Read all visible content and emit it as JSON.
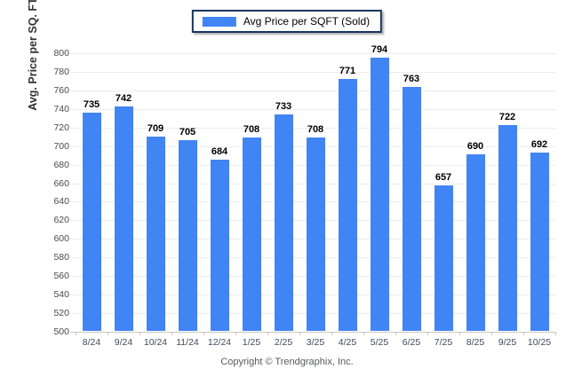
{
  "legend": {
    "label": "Avg Price per SQFT (Sold)"
  },
  "axes": {
    "y_title": "Avg. Price per SQ. FT.",
    "yticks": [
      500,
      520,
      540,
      560,
      580,
      600,
      620,
      640,
      660,
      680,
      700,
      720,
      740,
      760,
      780,
      800
    ]
  },
  "footer": {
    "copyright": "Copyright © Trendgraphix, Inc."
  },
  "colors": {
    "bar": "#4184f3",
    "legend_border": "#17375e",
    "gridline": "#ececec",
    "baseline": "#c9c9c9"
  },
  "chart_data": {
    "type": "bar",
    "title": "",
    "xlabel": "",
    "ylabel": "Avg. Price per SQ. FT.",
    "ylim": [
      500,
      800
    ],
    "ytick_step": 20,
    "grid": true,
    "legend_position": "top-center",
    "series_name": "Avg Price per SQFT (Sold)",
    "categories": [
      "8/24",
      "9/24",
      "10/24",
      "11/24",
      "12/24",
      "1/25",
      "2/25",
      "3/25",
      "4/25",
      "5/25",
      "6/25",
      "7/25",
      "8/25",
      "9/25",
      "10/25"
    ],
    "values": [
      735,
      742,
      709,
      705,
      684,
      708,
      733,
      708,
      771,
      794,
      763,
      657,
      690,
      722,
      692
    ]
  }
}
